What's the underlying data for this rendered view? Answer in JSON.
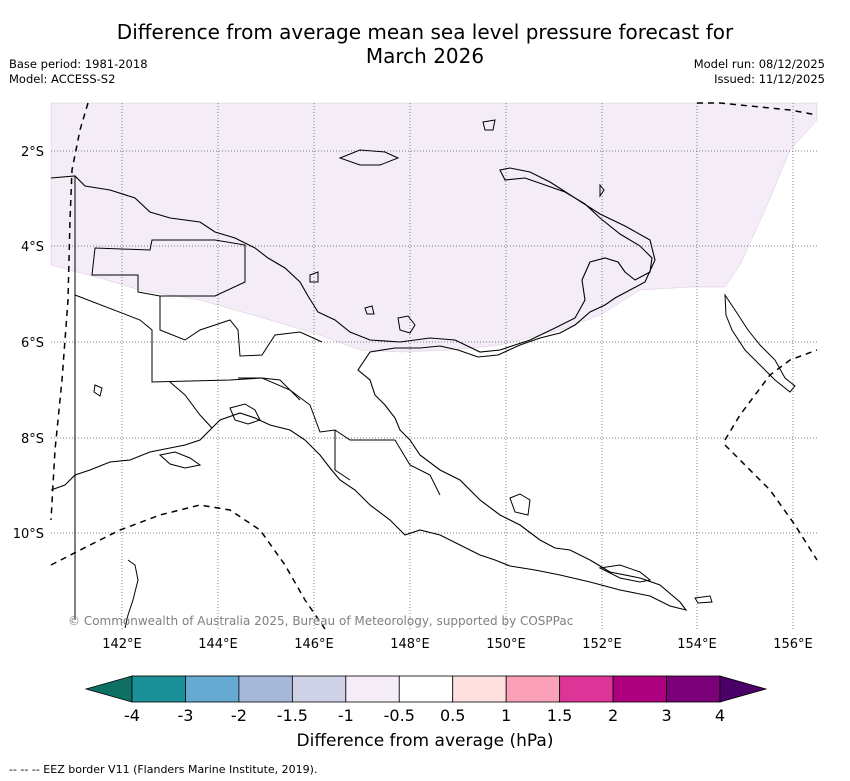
{
  "header": {
    "title_line1": "Difference from average mean sea level pressure forecast for",
    "title_line2": "March 2026",
    "base_period": "Base period: 1981-2018",
    "model": "Model: ACCESS-S2",
    "model_run": "Model run: 08/12/2025",
    "issued": "Issued: 11/12/2025"
  },
  "map": {
    "lat_labels": [
      "2°S",
      "4°S",
      "6°S",
      "8°S",
      "10°S"
    ],
    "lon_labels": [
      "142°E",
      "144°E",
      "146°E",
      "148°E",
      "150°E",
      "152°E",
      "154°E",
      "156°E"
    ],
    "copyright": "© Commonwealth of Australia 2025, Bureau of Meteorology, supported by COSPPac",
    "anomaly_region_category": "-1 to -0.5",
    "anomaly_region_color": "#f4ecf6"
  },
  "colorbar": {
    "label": "Difference from average (hPa)",
    "ticks": [
      "-4",
      "-3",
      "-2",
      "-1.5",
      "-1",
      "-0.5",
      "0.5",
      "1",
      "1.5",
      "2",
      "3",
      "4"
    ],
    "colors": [
      "#0e6f62",
      "#1b9099",
      "#66aad2",
      "#a6b7d9",
      "#cfd1e6",
      "#f4ecf6",
      "#ffffff",
      "#fee0de",
      "#fba0b9",
      "#dd3597",
      "#ad017e",
      "#7a0177",
      "#4b0068"
    ]
  },
  "footer": {
    "legend": "--  --  -- EEZ border V11 (Flanders Marine Institute, 2019)."
  }
}
